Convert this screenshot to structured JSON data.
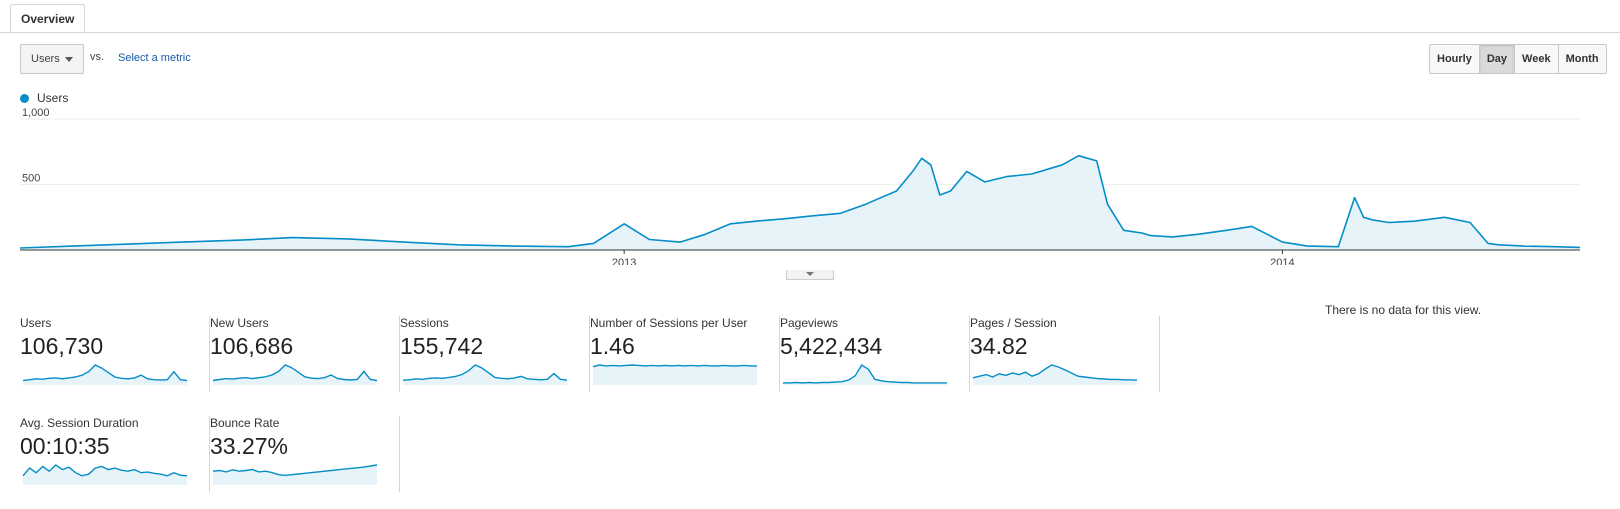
{
  "tabs": [
    {
      "label": "Overview"
    }
  ],
  "controls": {
    "primary_metric": "Users",
    "vs_label": "vs.",
    "secondary_metric_link": "Select a metric",
    "granularity": [
      {
        "label": "Hourly",
        "active": false
      },
      {
        "label": "Day",
        "active": true
      },
      {
        "label": "Week",
        "active": false
      },
      {
        "label": "Month",
        "active": false
      }
    ]
  },
  "colors": {
    "series_line": "#058dc7",
    "series_fill": "#e6f4fa",
    "grid": "#eeeeee",
    "axis": "#333333"
  },
  "chart_data": {
    "type": "area",
    "legend": [
      {
        "name": "Users"
      }
    ],
    "legend_position": "top-left",
    "ylim": [
      0,
      1000
    ],
    "y_ticks": [
      {
        "label": "1,000",
        "value": 1000
      },
      {
        "label": "500",
        "value": 500
      }
    ],
    "x_ticks": [
      {
        "label": "2013",
        "date": "2013-01-01"
      },
      {
        "label": "2014",
        "date": "2014-01-01"
      }
    ],
    "grid": true,
    "x_start": "2012-02-01",
    "x_end": "2014-06-15",
    "series": [
      {
        "name": "Users",
        "x": [
          "2012-02-01",
          "2012-03-01",
          "2012-04-01",
          "2012-05-01",
          "2012-06-01",
          "2012-07-01",
          "2012-08-01",
          "2012-09-01",
          "2012-10-01",
          "2012-11-01",
          "2012-12-01",
          "2012-12-15",
          "2013-01-01",
          "2013-01-15",
          "2013-02-01",
          "2013-02-15",
          "2013-03-01",
          "2013-03-15",
          "2013-04-01",
          "2013-04-15",
          "2013-05-01",
          "2013-05-15",
          "2013-06-01",
          "2013-06-10",
          "2013-06-15",
          "2013-06-20",
          "2013-06-25",
          "2013-07-01",
          "2013-07-10",
          "2013-07-20",
          "2013-08-01",
          "2013-08-15",
          "2013-09-01",
          "2013-09-10",
          "2013-09-20",
          "2013-09-26",
          "2013-10-05",
          "2013-10-15",
          "2013-10-20",
          "2013-11-01",
          "2013-11-15",
          "2013-12-01",
          "2013-12-15",
          "2014-01-01",
          "2014-01-15",
          "2014-02-01",
          "2014-02-10",
          "2014-02-15",
          "2014-02-20",
          "2014-03-01",
          "2014-03-15",
          "2014-04-01",
          "2014-04-15",
          "2014-04-25",
          "2014-05-01",
          "2014-05-15",
          "2014-06-01",
          "2014-06-15"
        ],
        "values": [
          15,
          30,
          45,
          60,
          75,
          95,
          85,
          60,
          40,
          30,
          25,
          50,
          200,
          80,
          60,
          120,
          200,
          220,
          240,
          260,
          280,
          350,
          450,
          600,
          700,
          650,
          420,
          450,
          600,
          520,
          560,
          580,
          650,
          720,
          680,
          350,
          150,
          130,
          110,
          100,
          120,
          150,
          180,
          60,
          30,
          25,
          400,
          250,
          230,
          210,
          220,
          250,
          210,
          50,
          40,
          30,
          25,
          20
        ]
      }
    ]
  },
  "scorecards": [
    {
      "label": "Users",
      "value": "106,730",
      "spark": [
        10,
        12,
        14,
        13,
        15,
        16,
        14,
        16,
        18,
        22,
        30,
        45,
        38,
        28,
        18,
        15,
        14,
        16,
        22,
        14,
        12,
        11,
        12,
        30,
        12,
        10
      ]
    },
    {
      "label": "New Users",
      "value": "106,686",
      "spark": [
        10,
        12,
        14,
        13,
        15,
        16,
        14,
        16,
        18,
        22,
        30,
        44,
        38,
        28,
        18,
        15,
        14,
        16,
        22,
        14,
        12,
        11,
        12,
        30,
        12,
        10
      ]
    },
    {
      "label": "Sessions",
      "value": "155,742",
      "spark": [
        10,
        11,
        13,
        12,
        14,
        15,
        14,
        16,
        18,
        22,
        30,
        42,
        36,
        26,
        16,
        14,
        13,
        15,
        18,
        13,
        12,
        11,
        12,
        24,
        12,
        10
      ]
    },
    {
      "label": "Number of Sessions per User",
      "value": "1.46",
      "spark": [
        42,
        46,
        44,
        45,
        44,
        45,
        46,
        45,
        44,
        45,
        44,
        45,
        44,
        45,
        44,
        45,
        44,
        45,
        44,
        44,
        45,
        44,
        44,
        45,
        44,
        44
      ]
    },
    {
      "label": "Pageviews",
      "value": "5,422,434",
      "spark": [
        5,
        5,
        6,
        5,
        6,
        5,
        6,
        6,
        7,
        8,
        12,
        22,
        48,
        38,
        14,
        10,
        8,
        7,
        6,
        6,
        5,
        5,
        5,
        5,
        5,
        5
      ]
    },
    {
      "label": "Pages / Session",
      "value": "34.82",
      "spark": [
        18,
        22,
        26,
        20,
        28,
        24,
        30,
        26,
        32,
        22,
        28,
        40,
        50,
        45,
        38,
        30,
        22,
        20,
        18,
        16,
        15,
        14,
        14,
        13,
        13,
        12
      ]
    },
    {
      "label": "Avg. Session Duration",
      "value": "00:10:35",
      "spark": [
        30,
        55,
        40,
        60,
        45,
        65,
        50,
        58,
        40,
        30,
        35,
        55,
        60,
        50,
        55,
        48,
        45,
        50,
        40,
        42,
        38,
        35,
        30,
        40,
        32,
        30
      ]
    },
    {
      "label": "Bounce Rate",
      "value": "33.27%",
      "spark": [
        40,
        42,
        38,
        44,
        40,
        42,
        45,
        38,
        40,
        36,
        30,
        28,
        30,
        32,
        34,
        36,
        38,
        40,
        42,
        44,
        46,
        48,
        50,
        52,
        55,
        58
      ]
    }
  ],
  "no_data_message": "There is no data for this view."
}
